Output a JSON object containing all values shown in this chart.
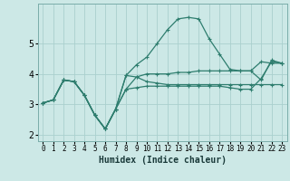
{
  "title": "",
  "xlabel": "Humidex (Indice chaleur)",
  "ylabel": "",
  "bg_color": "#cce8e6",
  "grid_color": "#aad0ce",
  "line_color": "#2e7d6e",
  "x_range": [
    -0.5,
    23.5
  ],
  "y_range": [
    1.8,
    6.3
  ],
  "series": [
    {
      "x": [
        0,
        1,
        2,
        3,
        4,
        5,
        6,
        7,
        8,
        9,
        10,
        11,
        12,
        13,
        14,
        15,
        16,
        17,
        18,
        19,
        20,
        21,
        22,
        23
      ],
      "y": [
        3.05,
        3.15,
        3.8,
        3.75,
        3.3,
        2.65,
        2.2,
        2.85,
        3.5,
        3.9,
        3.75,
        3.7,
        3.65,
        3.65,
        3.65,
        3.65,
        3.65,
        3.65,
        3.65,
        3.65,
        3.65,
        3.65,
        3.65,
        3.65
      ]
    },
    {
      "x": [
        0,
        1,
        2,
        3,
        4,
        5,
        6,
        7,
        8,
        9,
        10,
        11,
        12,
        13,
        14,
        15,
        16,
        17,
        18,
        19,
        20,
        21,
        22,
        23
      ],
      "y": [
        3.05,
        3.15,
        3.8,
        3.75,
        3.3,
        2.65,
        2.2,
        2.85,
        3.95,
        4.3,
        4.55,
        5.0,
        5.45,
        5.8,
        5.85,
        5.8,
        5.15,
        4.65,
        4.15,
        4.1,
        4.1,
        3.8,
        4.45,
        4.35
      ]
    },
    {
      "x": [
        0,
        1,
        2,
        3,
        4,
        5,
        6,
        7,
        8,
        9,
        10,
        11,
        12,
        13,
        14,
        15,
        16,
        17,
        18,
        19,
        20,
        21,
        22,
        23
      ],
      "y": [
        3.05,
        3.15,
        3.8,
        3.75,
        3.3,
        2.65,
        2.2,
        2.85,
        3.95,
        3.9,
        4.0,
        4.0,
        4.0,
        4.05,
        4.05,
        4.1,
        4.1,
        4.1,
        4.1,
        4.1,
        4.1,
        4.4,
        4.35,
        4.35
      ]
    },
    {
      "x": [
        0,
        1,
        2,
        3,
        4,
        5,
        6,
        7,
        8,
        9,
        10,
        11,
        12,
        13,
        14,
        15,
        16,
        17,
        18,
        19,
        20,
        21,
        22,
        23
      ],
      "y": [
        3.05,
        3.15,
        3.8,
        3.75,
        3.3,
        2.65,
        2.2,
        2.85,
        3.5,
        3.55,
        3.6,
        3.6,
        3.6,
        3.6,
        3.6,
        3.6,
        3.6,
        3.6,
        3.55,
        3.5,
        3.5,
        3.85,
        4.4,
        4.35
      ]
    }
  ],
  "yticks": [
    2,
    3,
    4,
    5
  ],
  "xticks": [
    0,
    1,
    2,
    3,
    4,
    5,
    6,
    7,
    8,
    9,
    10,
    11,
    12,
    13,
    14,
    15,
    16,
    17,
    18,
    19,
    20,
    21,
    22,
    23
  ],
  "marker": "+",
  "markersize": 3,
  "linewidth": 0.9
}
